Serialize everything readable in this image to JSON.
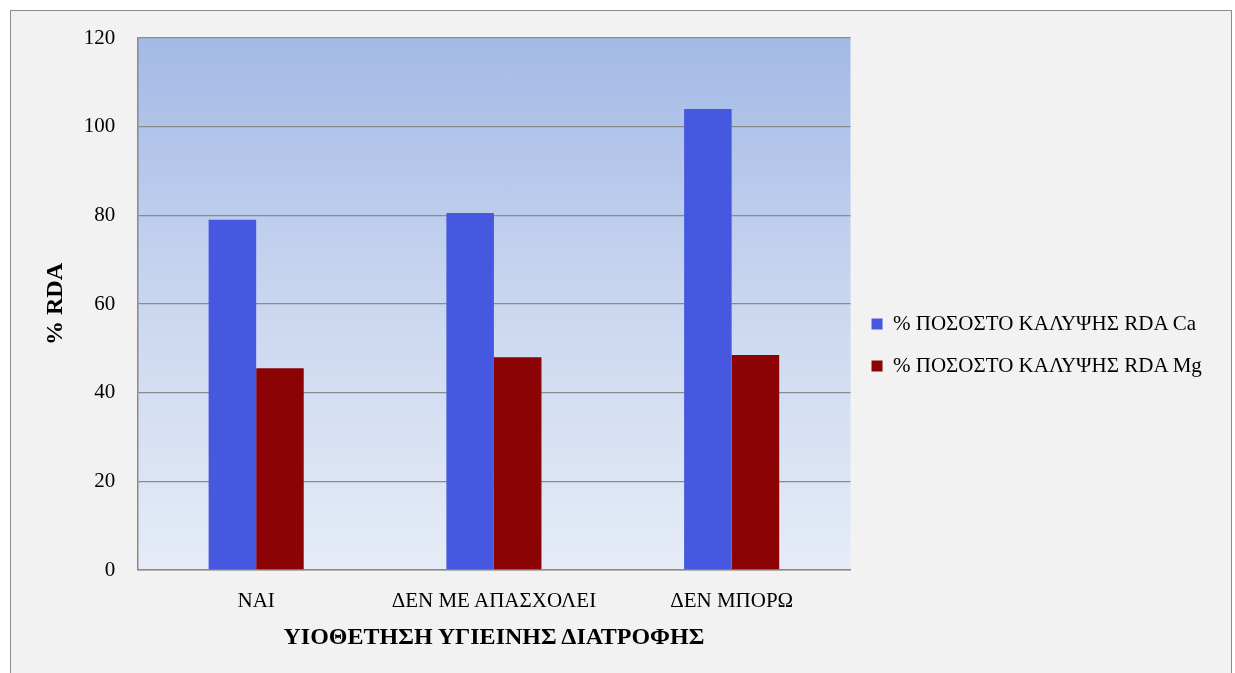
{
  "chart_data": {
    "type": "bar",
    "xlabel": "ΥΙΟΘΕΤΗΣΗ ΥΓΙΕΙΝΗΣ ΔΙΑΤΡΟΦΗΣ",
    "ylabel": "% RDA",
    "categories": [
      "ΝΑΙ",
      "ΔΕΝ ΜΕ ΑΠΑΣΧΟΛΕΙ",
      "ΔΕΝ ΜΠΟΡΩ"
    ],
    "series": [
      {
        "name": "% ΠΟΣΟΣΤΟ ΚΑΛΥΨΗΣ RDA Ca",
        "color": "#4758e0",
        "values": [
          79,
          80.5,
          104
        ]
      },
      {
        "name": "% ΠΟΣΟΣΤΟ ΚΑΛΥΨΗΣ RDA Mg",
        "color": "#8b0304",
        "values": [
          45.5,
          48,
          48.5
        ]
      }
    ],
    "ylim": [
      0,
      120
    ],
    "yticks": [
      0,
      20,
      40,
      60,
      80,
      100,
      120
    ],
    "grid": "y",
    "legend": "right"
  }
}
